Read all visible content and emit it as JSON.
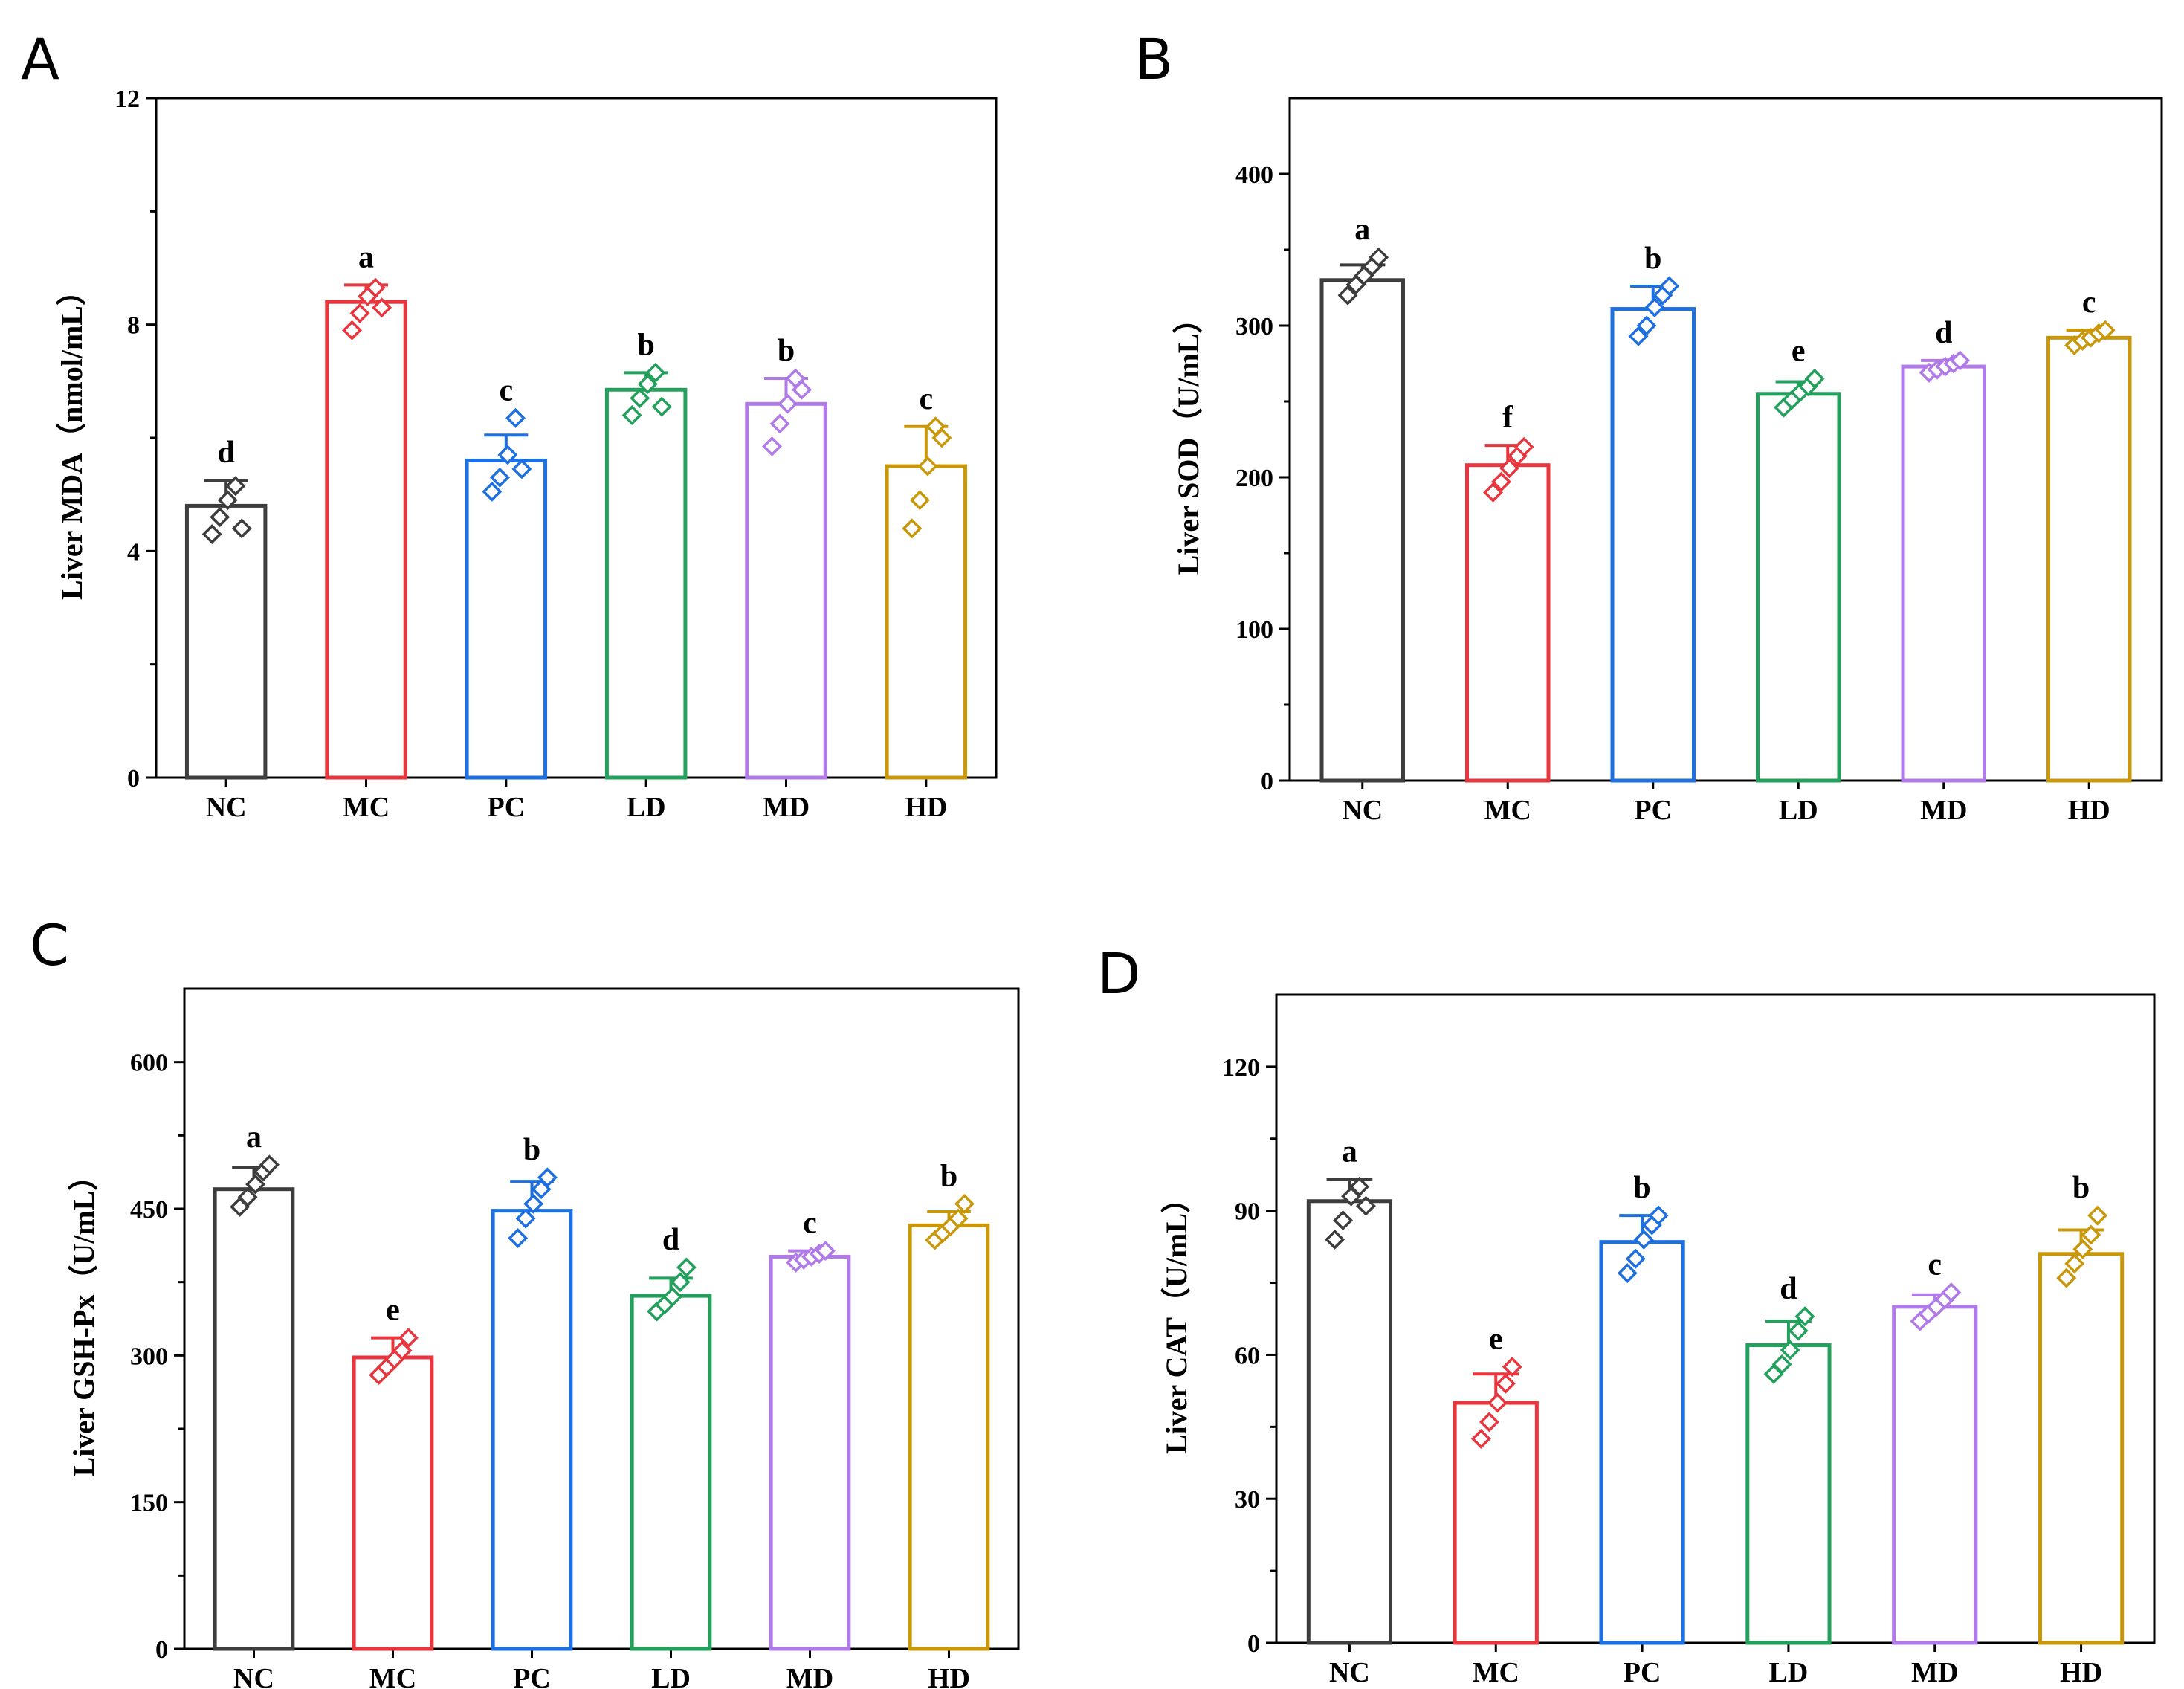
{
  "figure": {
    "group_colors": {
      "NC": "#3d3d3d",
      "MC": "#e8363f",
      "PC": "#1e6fe0",
      "LD": "#23a05c",
      "MD": "#b07ae8",
      "HD": "#c9980a"
    }
  },
  "chart_data": [
    {
      "panel": "A",
      "type": "bar",
      "ylabel": "Liver MDA（nmol/mL）",
      "categories": [
        "NC",
        "MC",
        "PC",
        "LD",
        "MD",
        "HD"
      ],
      "values": [
        4.8,
        8.4,
        5.6,
        6.85,
        6.6,
        5.5
      ],
      "errors": [
        0.45,
        0.3,
        0.45,
        0.3,
        0.45,
        0.7
      ],
      "significance": [
        "d",
        "a",
        "c",
        "b",
        "b",
        "c"
      ],
      "points": [
        [
          4.3,
          4.6,
          4.9,
          5.15,
          4.4
        ],
        [
          7.9,
          8.2,
          8.5,
          8.65,
          8.3
        ],
        [
          5.05,
          5.3,
          5.7,
          6.35,
          5.45
        ],
        [
          6.4,
          6.7,
          6.95,
          7.15,
          6.55
        ],
        [
          5.85,
          6.25,
          6.6,
          7.05,
          6.85
        ],
        [
          4.4,
          4.9,
          5.5,
          6.2,
          6.0
        ]
      ],
      "ylim": [
        0,
        12
      ],
      "yticks": [
        0,
        4,
        8,
        12
      ],
      "ytick_labels": [
        "0",
        "4",
        "8",
        "12"
      ]
    },
    {
      "panel": "B",
      "type": "bar",
      "ylabel": "Liver SOD（U/mL）",
      "categories": [
        "NC",
        "MC",
        "PC",
        "LD",
        "MD",
        "HD"
      ],
      "values": [
        330,
        208,
        311,
        255,
        273,
        292
      ],
      "errors": [
        10,
        13,
        15,
        8,
        4,
        5
      ],
      "significance": [
        "a",
        "f",
        "b",
        "e",
        "d",
        "c"
      ],
      "points": [
        [
          320,
          327,
          333,
          339,
          345
        ],
        [
          190,
          197,
          206,
          214,
          220
        ],
        [
          293,
          300,
          312,
          320,
          326
        ],
        [
          246,
          251,
          256,
          260,
          265
        ],
        [
          269,
          271,
          273,
          275,
          277
        ],
        [
          287,
          290,
          292,
          295,
          297
        ]
      ],
      "ylim": [
        0,
        450
      ],
      "yticks": [
        0,
        100,
        200,
        300,
        400
      ],
      "ytick_labels": [
        "0",
        "100",
        "200",
        "300",
        "400"
      ]
    },
    {
      "panel": "C",
      "type": "bar",
      "ylabel": "Liver GSH-Px（U/mL）",
      "categories": [
        "NC",
        "MC",
        "PC",
        "LD",
        "MD",
        "HD"
      ],
      "values": [
        470,
        298,
        448,
        361,
        401,
        433
      ],
      "errors": [
        22,
        20,
        30,
        18,
        6,
        14
      ],
      "significance": [
        "a",
        "e",
        "b",
        "d",
        "c",
        "b"
      ],
      "points": [
        [
          452,
          462,
          475,
          488,
          495
        ],
        [
          280,
          288,
          296,
          305,
          318
        ],
        [
          420,
          440,
          455,
          470,
          482
        ],
        [
          345,
          352,
          360,
          375,
          390
        ],
        [
          395,
          398,
          401,
          404,
          407
        ],
        [
          418,
          425,
          432,
          440,
          455
        ]
      ],
      "ylim": [
        0,
        675
      ],
      "yticks": [
        0,
        150,
        300,
        450,
        600
      ],
      "ytick_labels": [
        "0",
        "150",
        "300",
        "450",
        "600"
      ]
    },
    {
      "panel": "D",
      "type": "bar",
      "ylabel": "Liver CAT（U/mL）",
      "categories": [
        "NC",
        "MC",
        "PC",
        "LD",
        "MD",
        "HD"
      ],
      "values": [
        92,
        50,
        83.5,
        62,
        70,
        81
      ],
      "errors": [
        4.5,
        6,
        5.5,
        5,
        2.5,
        5
      ],
      "significance": [
        "a",
        "e",
        "b",
        "d",
        "c",
        "b"
      ],
      "points": [
        [
          84,
          88,
          93,
          95,
          91
        ],
        [
          42.5,
          46,
          50,
          54,
          57.5
        ],
        [
          77,
          80,
          84,
          87,
          89
        ],
        [
          56,
          58,
          61,
          65,
          68
        ],
        [
          67,
          68.5,
          70,
          71.5,
          73
        ],
        [
          76,
          79,
          82,
          85,
          89
        ]
      ],
      "ylim": [
        0,
        135
      ],
      "yticks": [
        0,
        30,
        60,
        90,
        120
      ],
      "ytick_labels": [
        "0",
        "30",
        "60",
        "90",
        "120"
      ]
    }
  ]
}
